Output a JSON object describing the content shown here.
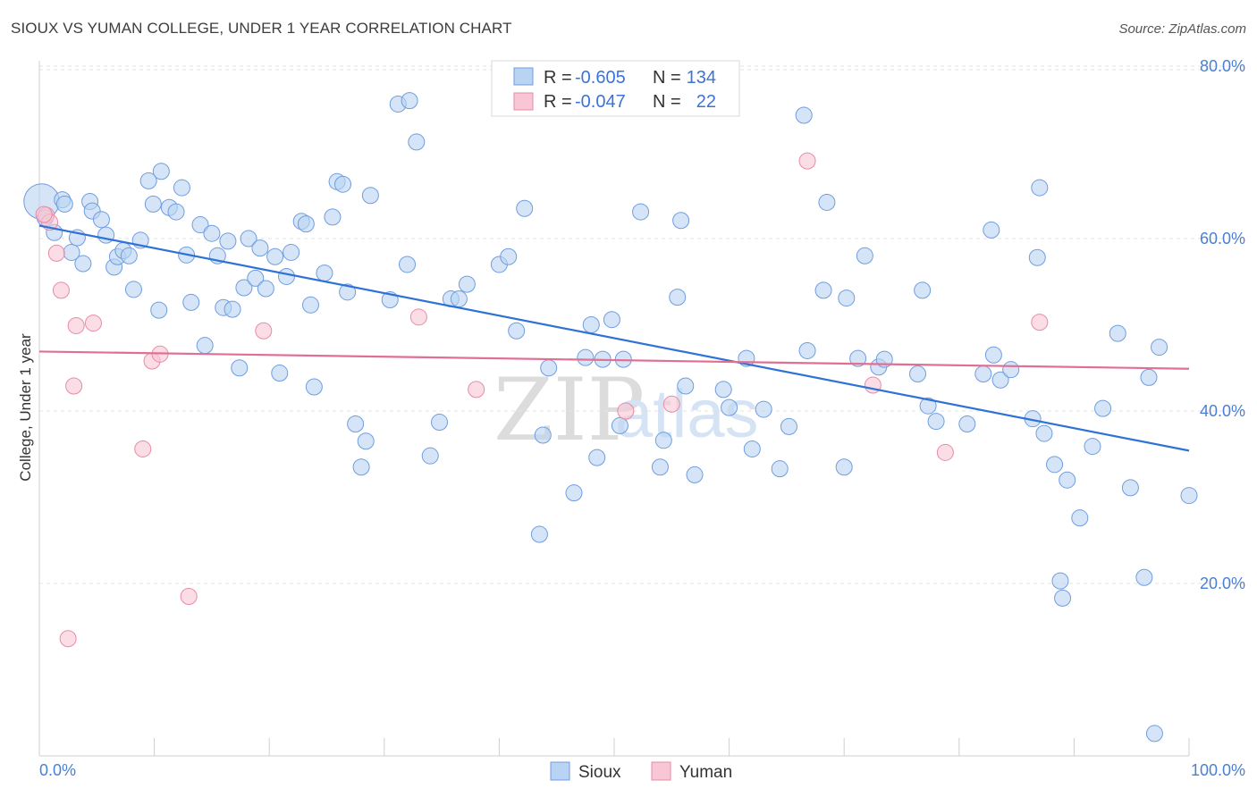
{
  "title": "SIOUX VS YUMAN COLLEGE, UNDER 1 YEAR CORRELATION CHART",
  "source": "Source: ZipAtlas.com",
  "watermark": {
    "part1": "ZIP",
    "part2": "atlas"
  },
  "colors": {
    "sioux_fill": "#b9d3f2",
    "sioux_stroke": "#6f9de0",
    "sioux_line": "#2f72d6",
    "yuman_fill": "#f8c6d4",
    "yuman_stroke": "#e98aa6",
    "yuman_line": "#e06f92",
    "tick_text": "#4a7fd4"
  },
  "legend": {
    "rows": [
      {
        "r_label": "R = ",
        "r_value": "-0.605",
        "n_label": "N = ",
        "n_value": "134"
      },
      {
        "r_label": "R = ",
        "r_value": "-0.047",
        "n_label": "N = ",
        "n_value": "22"
      }
    ]
  },
  "chart_data": {
    "type": "scatter",
    "title": "SIOUX VS YUMAN COLLEGE, UNDER 1 YEAR CORRELATION CHART",
    "xlabel": "",
    "ylabel": "College, Under 1 year",
    "xlim": [
      0,
      100
    ],
    "ylim": [
      0,
      82
    ],
    "x_tick_labels": [
      "0.0%",
      "100.0%"
    ],
    "y_ticks": [
      20,
      40,
      60,
      80
    ],
    "y_tick_labels": [
      "20.0%",
      "40.0%",
      "60.0%",
      "80.0%"
    ],
    "grid": true,
    "legend_position": "top-center",
    "series": [
      {
        "name": "Sioux",
        "trend": {
          "x": [
            0,
            100
          ],
          "y": [
            61.5,
            35.4
          ]
        },
        "points": [
          [
            0.2,
            64.3,
            2.2
          ],
          [
            0.5,
            62.4,
            1
          ],
          [
            1.3,
            60.7,
            1
          ],
          [
            2.0,
            64.5,
            1
          ],
          [
            2.2,
            64.0,
            1
          ],
          [
            2.8,
            58.4,
            1
          ],
          [
            3.3,
            60.1,
            1
          ],
          [
            3.8,
            57.1,
            1
          ],
          [
            4.4,
            64.3,
            1
          ],
          [
            4.6,
            63.2,
            1
          ],
          [
            5.4,
            62.2,
            1
          ],
          [
            5.8,
            60.4,
            1
          ],
          [
            6.5,
            56.7,
            1
          ],
          [
            6.8,
            57.9,
            1
          ],
          [
            7.3,
            58.6,
            1
          ],
          [
            7.8,
            58.0,
            1
          ],
          [
            8.2,
            54.1,
            1
          ],
          [
            8.8,
            59.8,
            1
          ],
          [
            9.5,
            66.7,
            1
          ],
          [
            9.9,
            64.0,
            1
          ],
          [
            10.4,
            51.7,
            1
          ],
          [
            10.6,
            67.8,
            1
          ],
          [
            11.3,
            63.6,
            1
          ],
          [
            11.9,
            63.1,
            1
          ],
          [
            12.4,
            65.9,
            1
          ],
          [
            12.8,
            58.1,
            1
          ],
          [
            13.2,
            52.6,
            1
          ],
          [
            14.0,
            61.6,
            1
          ],
          [
            14.4,
            47.6,
            1
          ],
          [
            15.0,
            60.6,
            1
          ],
          [
            15.5,
            58.0,
            1
          ],
          [
            16.0,
            52.0,
            1
          ],
          [
            16.4,
            59.7,
            1
          ],
          [
            16.8,
            51.8,
            1
          ],
          [
            17.4,
            45.0,
            1
          ],
          [
            17.8,
            54.3,
            1
          ],
          [
            18.2,
            60.0,
            1
          ],
          [
            18.8,
            55.4,
            1
          ],
          [
            19.2,
            58.9,
            1
          ],
          [
            19.7,
            54.2,
            1
          ],
          [
            20.5,
            57.9,
            1
          ],
          [
            20.9,
            44.4,
            1
          ],
          [
            21.5,
            55.6,
            1
          ],
          [
            21.9,
            58.4,
            1
          ],
          [
            22.8,
            62.0,
            1
          ],
          [
            23.2,
            61.7,
            1
          ],
          [
            23.6,
            52.3,
            1
          ],
          [
            23.9,
            42.8,
            1
          ],
          [
            24.8,
            56.0,
            1
          ],
          [
            25.5,
            62.5,
            1
          ],
          [
            25.9,
            66.6,
            1
          ],
          [
            26.4,
            66.3,
            1
          ],
          [
            26.8,
            53.8,
            1
          ],
          [
            27.5,
            38.5,
            1
          ],
          [
            28.0,
            33.5,
            1
          ],
          [
            28.4,
            36.5,
            1
          ],
          [
            28.8,
            65.0,
            1
          ],
          [
            30.5,
            52.9,
            1
          ],
          [
            31.2,
            75.6,
            1
          ],
          [
            32.0,
            57.0,
            1
          ],
          [
            32.2,
            76.0,
            1
          ],
          [
            32.8,
            71.2,
            1
          ],
          [
            34.0,
            34.8,
            1
          ],
          [
            34.8,
            38.7,
            1
          ],
          [
            35.8,
            53.0,
            1
          ],
          [
            36.5,
            53.0,
            1
          ],
          [
            37.2,
            54.7,
            1
          ],
          [
            40.0,
            57.0,
            1
          ],
          [
            40.8,
            57.9,
            1
          ],
          [
            41.5,
            49.3,
            1
          ],
          [
            42.2,
            63.5,
            1
          ],
          [
            43.5,
            25.7,
            1
          ],
          [
            43.8,
            37.2,
            1
          ],
          [
            44.3,
            45.0,
            1
          ],
          [
            46.5,
            30.5,
            1
          ],
          [
            47.5,
            46.2,
            1
          ],
          [
            48.0,
            50.0,
            1
          ],
          [
            48.5,
            34.6,
            1
          ],
          [
            49.0,
            46.0,
            1
          ],
          [
            49.8,
            50.6,
            1
          ],
          [
            50.5,
            38.3,
            1
          ],
          [
            50.8,
            46.0,
            1
          ],
          [
            52.3,
            63.1,
            1
          ],
          [
            54.0,
            33.5,
            1
          ],
          [
            54.3,
            36.6,
            1
          ],
          [
            55.5,
            53.2,
            1
          ],
          [
            55.8,
            62.1,
            1
          ],
          [
            56.2,
            42.9,
            1
          ],
          [
            57.0,
            32.6,
            1
          ],
          [
            59.5,
            42.5,
            1
          ],
          [
            60.0,
            40.4,
            1
          ],
          [
            61.5,
            46.1,
            1
          ],
          [
            62.0,
            35.6,
            1
          ],
          [
            63.0,
            40.2,
            1
          ],
          [
            64.4,
            33.3,
            1
          ],
          [
            65.2,
            38.2,
            1
          ],
          [
            66.5,
            74.3,
            1
          ],
          [
            66.8,
            47.0,
            1
          ],
          [
            68.2,
            54.0,
            1
          ],
          [
            68.5,
            64.2,
            1
          ],
          [
            70.0,
            33.5,
            1
          ],
          [
            70.2,
            53.1,
            1
          ],
          [
            71.2,
            46.1,
            1
          ],
          [
            71.8,
            58.0,
            1
          ],
          [
            73.0,
            45.1,
            1
          ],
          [
            73.5,
            46.0,
            1
          ],
          [
            76.4,
            44.3,
            1
          ],
          [
            76.8,
            54.0,
            1
          ],
          [
            77.3,
            40.6,
            1
          ],
          [
            78.0,
            38.8,
            1
          ],
          [
            80.7,
            38.5,
            1
          ],
          [
            82.1,
            44.3,
            1
          ],
          [
            82.8,
            61.0,
            1
          ],
          [
            83.0,
            46.5,
            1
          ],
          [
            83.6,
            43.6,
            1
          ],
          [
            84.5,
            44.8,
            1
          ],
          [
            86.4,
            39.1,
            1
          ],
          [
            86.8,
            57.8,
            1
          ],
          [
            87.0,
            65.9,
            1
          ],
          [
            87.4,
            37.4,
            1
          ],
          [
            88.3,
            33.8,
            1
          ],
          [
            88.8,
            20.3,
            1
          ],
          [
            89.0,
            18.3,
            1
          ],
          [
            89.4,
            32.0,
            1
          ],
          [
            90.5,
            27.6,
            1
          ],
          [
            91.6,
            35.9,
            1
          ],
          [
            92.5,
            40.3,
            1
          ],
          [
            93.8,
            49.0,
            1
          ],
          [
            94.9,
            31.1,
            1
          ],
          [
            96.1,
            20.7,
            1
          ],
          [
            96.5,
            43.9,
            1
          ],
          [
            97.0,
            2.6,
            1
          ],
          [
            97.4,
            47.4,
            1
          ],
          [
            100.0,
            30.2,
            1
          ]
        ]
      },
      {
        "name": "Yuman",
        "trend": {
          "x": [
            0,
            100
          ],
          "y": [
            46.9,
            44.9
          ]
        },
        "points": [
          [
            0.6,
            62.7,
            1
          ],
          [
            0.9,
            61.9,
            1
          ],
          [
            1.5,
            58.3,
            1
          ],
          [
            1.9,
            54.0,
            1
          ],
          [
            2.5,
            13.6,
            1
          ],
          [
            3.0,
            42.9,
            1
          ],
          [
            3.2,
            49.9,
            1
          ],
          [
            4.7,
            50.2,
            1
          ],
          [
            9.0,
            35.6,
            1
          ],
          [
            9.8,
            45.8,
            1
          ],
          [
            10.5,
            46.6,
            1
          ],
          [
            13.0,
            18.5,
            1
          ],
          [
            19.5,
            49.3,
            1
          ],
          [
            33.0,
            50.9,
            1
          ],
          [
            38.0,
            42.5,
            1
          ],
          [
            51.0,
            40.0,
            1
          ],
          [
            55.0,
            40.8,
            1
          ],
          [
            66.8,
            69.0,
            1
          ],
          [
            72.5,
            43.0,
            1
          ],
          [
            78.8,
            35.2,
            1
          ],
          [
            87.0,
            50.3,
            1
          ],
          [
            0.4,
            62.8,
            1
          ]
        ]
      }
    ]
  }
}
